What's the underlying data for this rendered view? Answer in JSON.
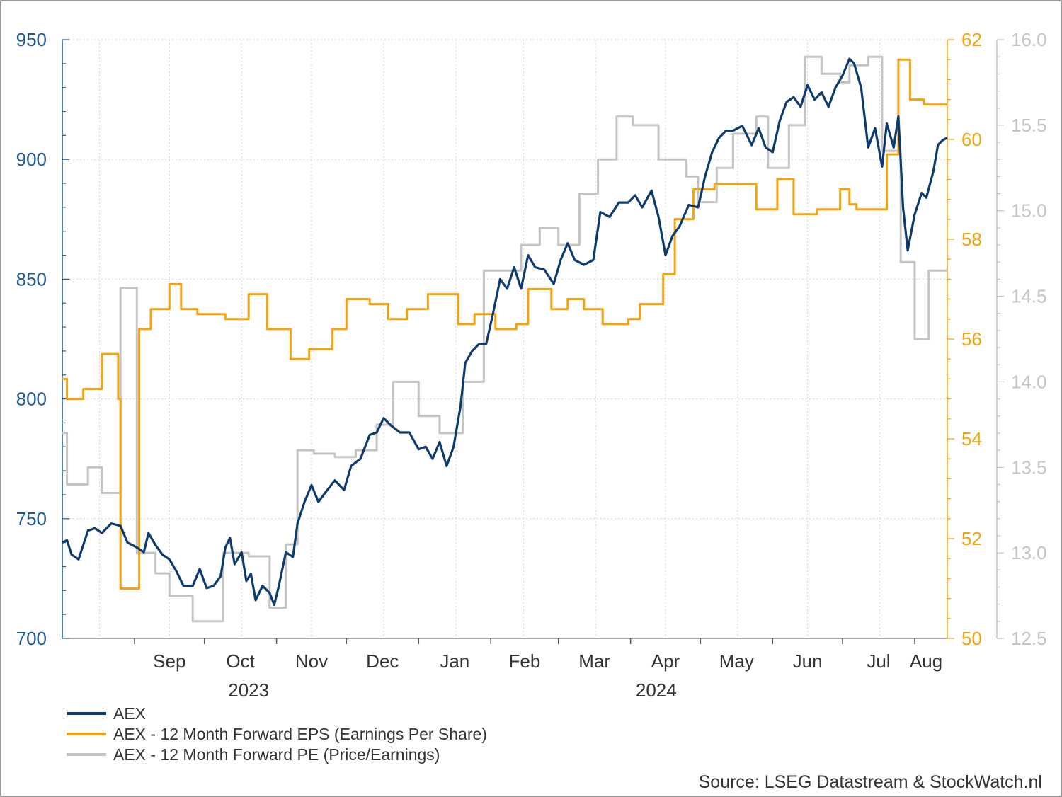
{
  "source_text": "Source: LSEG Datastream & StockWatch.nl",
  "legend": [
    {
      "label": "AEX",
      "color": "#0d3b6e"
    },
    {
      "label": "AEX - 12 Month Forward EPS (Earnings Per Share)",
      "color": "#f5a30a"
    },
    {
      "label": "AEX - 12 Month Forward PE (Price/Earnings)",
      "color": "#c4c4c4"
    }
  ],
  "chart_data": {
    "type": "line",
    "title": "",
    "grid": true,
    "x_start": "2023-08-01",
    "x_end": "2024-08-15",
    "month_ticks": [
      {
        "label": "Sep",
        "date": "2023-09-01"
      },
      {
        "label": "Oct",
        "date": "2023-10-01"
      },
      {
        "label": "Nov",
        "date": "2023-11-01"
      },
      {
        "label": "Dec",
        "date": "2023-12-01"
      },
      {
        "label": "Jan",
        "date": "2024-01-01"
      },
      {
        "label": "Feb",
        "date": "2024-02-01"
      },
      {
        "label": "Mar",
        "date": "2024-03-01"
      },
      {
        "label": "Apr",
        "date": "2024-04-01"
      },
      {
        "label": "May",
        "date": "2024-05-01"
      },
      {
        "label": "Jun",
        "date": "2024-06-01"
      },
      {
        "label": "Jul",
        "date": "2024-07-01"
      },
      {
        "label": "Aug",
        "date": "2024-08-01"
      }
    ],
    "year_labels": [
      {
        "label": "2023",
        "date": "2023-10-20"
      },
      {
        "label": "2024",
        "date": "2024-04-12"
      }
    ],
    "axes": {
      "left": {
        "min": 700,
        "max": 950,
        "ticks": [
          "700",
          "750",
          "800",
          "850",
          "900",
          "950"
        ],
        "color": "#1f5a94"
      },
      "right1": {
        "min": 50,
        "max": 62,
        "ticks": [
          "50",
          "52",
          "54",
          "56",
          "58",
          "60",
          "62"
        ],
        "color": "#f5a30a"
      },
      "right2": {
        "min": 12.5,
        "max": 16.0,
        "ticks": [
          "12.5",
          "13.0",
          "13.5",
          "14.0",
          "14.5",
          "15.0",
          "15.5",
          "16.0"
        ],
        "color": "#c4c4c4"
      }
    },
    "series": [
      {
        "name": "AEX",
        "axis": "left",
        "color": "#0d3b6e",
        "points": [
          [
            "2023-08-01",
            740
          ],
          [
            "2023-08-03",
            741
          ],
          [
            "2023-08-05",
            735
          ],
          [
            "2023-08-08",
            733
          ],
          [
            "2023-08-12",
            745
          ],
          [
            "2023-08-15",
            746
          ],
          [
            "2023-08-18",
            744
          ],
          [
            "2023-08-22",
            748
          ],
          [
            "2023-08-26",
            747
          ],
          [
            "2023-08-29",
            740
          ],
          [
            "2023-09-02",
            738
          ],
          [
            "2023-09-05",
            736
          ],
          [
            "2023-09-07",
            744
          ],
          [
            "2023-09-10",
            739
          ],
          [
            "2023-09-13",
            735
          ],
          [
            "2023-09-16",
            733
          ],
          [
            "2023-09-19",
            728
          ],
          [
            "2023-09-22",
            722
          ],
          [
            "2023-09-26",
            722
          ],
          [
            "2023-09-29",
            729
          ],
          [
            "2023-10-02",
            721
          ],
          [
            "2023-10-05",
            722
          ],
          [
            "2023-10-08",
            726
          ],
          [
            "2023-10-10",
            738
          ],
          [
            "2023-10-12",
            742
          ],
          [
            "2023-10-14",
            731
          ],
          [
            "2023-10-17",
            736
          ],
          [
            "2023-10-19",
            724
          ],
          [
            "2023-10-21",
            727
          ],
          [
            "2023-10-23",
            716
          ],
          [
            "2023-10-26",
            722
          ],
          [
            "2023-10-29",
            719
          ],
          [
            "2023-10-31",
            714
          ],
          [
            "2023-11-02",
            722
          ],
          [
            "2023-11-05",
            736
          ],
          [
            "2023-11-08",
            734
          ],
          [
            "2023-11-10",
            748
          ],
          [
            "2023-11-13",
            757
          ],
          [
            "2023-11-16",
            764
          ],
          [
            "2023-11-19",
            757
          ],
          [
            "2023-11-22",
            761
          ],
          [
            "2023-11-26",
            766
          ],
          [
            "2023-11-30",
            762
          ],
          [
            "2023-12-03",
            772
          ],
          [
            "2023-12-07",
            775
          ],
          [
            "2023-12-11",
            785
          ],
          [
            "2023-12-14",
            786
          ],
          [
            "2023-12-17",
            792
          ],
          [
            "2023-12-20",
            789
          ],
          [
            "2023-12-24",
            786
          ],
          [
            "2023-12-28",
            786
          ],
          [
            "2024-01-01",
            779
          ],
          [
            "2024-01-04",
            780
          ],
          [
            "2024-01-07",
            775
          ],
          [
            "2024-01-10",
            782
          ],
          [
            "2024-01-13",
            772
          ],
          [
            "2024-01-16",
            780
          ],
          [
            "2024-01-19",
            797
          ],
          [
            "2024-01-21",
            815
          ],
          [
            "2024-01-24",
            820
          ],
          [
            "2024-01-27",
            823
          ],
          [
            "2024-01-30",
            823
          ],
          [
            "2024-02-02",
            836
          ],
          [
            "2024-02-05",
            850
          ],
          [
            "2024-02-08",
            846
          ],
          [
            "2024-02-11",
            855
          ],
          [
            "2024-02-14",
            846
          ],
          [
            "2024-02-17",
            860
          ],
          [
            "2024-02-20",
            855
          ],
          [
            "2024-02-24",
            854
          ],
          [
            "2024-02-28",
            848
          ],
          [
            "2024-03-02",
            858
          ],
          [
            "2024-03-05",
            865
          ],
          [
            "2024-03-08",
            858
          ],
          [
            "2024-03-12",
            856
          ],
          [
            "2024-03-16",
            858
          ],
          [
            "2024-03-19",
            878
          ],
          [
            "2024-03-23",
            876
          ],
          [
            "2024-03-27",
            882
          ],
          [
            "2024-03-31",
            882
          ],
          [
            "2024-04-03",
            885
          ],
          [
            "2024-04-06",
            880
          ],
          [
            "2024-04-10",
            887
          ],
          [
            "2024-04-13",
            876
          ],
          [
            "2024-04-16",
            860
          ],
          [
            "2024-04-19",
            868
          ],
          [
            "2024-04-22",
            872
          ],
          [
            "2024-04-26",
            881
          ],
          [
            "2024-04-30",
            880
          ],
          [
            "2024-05-03",
            893
          ],
          [
            "2024-05-06",
            903
          ],
          [
            "2024-05-09",
            909
          ],
          [
            "2024-05-12",
            912
          ],
          [
            "2024-05-15",
            912
          ],
          [
            "2024-05-19",
            914
          ],
          [
            "2024-05-23",
            906
          ],
          [
            "2024-05-26",
            913
          ],
          [
            "2024-05-29",
            905
          ],
          [
            "2024-06-01",
            903
          ],
          [
            "2024-06-04",
            916
          ],
          [
            "2024-06-07",
            924
          ],
          [
            "2024-06-10",
            926
          ],
          [
            "2024-06-13",
            922
          ],
          [
            "2024-06-16",
            931
          ],
          [
            "2024-06-19",
            925
          ],
          [
            "2024-06-22",
            928
          ],
          [
            "2024-06-25",
            922
          ],
          [
            "2024-06-28",
            930
          ],
          [
            "2024-07-01",
            935
          ],
          [
            "2024-07-04",
            942
          ],
          [
            "2024-07-06",
            940
          ],
          [
            "2024-07-09",
            930
          ],
          [
            "2024-07-12",
            905
          ],
          [
            "2024-07-15",
            913
          ],
          [
            "2024-07-18",
            897
          ],
          [
            "2024-07-20",
            915
          ],
          [
            "2024-07-23",
            905
          ],
          [
            "2024-07-25",
            918
          ],
          [
            "2024-07-27",
            880
          ],
          [
            "2024-07-29",
            862
          ],
          [
            "2024-08-01",
            877
          ],
          [
            "2024-08-04",
            886
          ],
          [
            "2024-08-06",
            884
          ],
          [
            "2024-08-09",
            895
          ],
          [
            "2024-08-11",
            906
          ],
          [
            "2024-08-13",
            908
          ],
          [
            "2024-08-15",
            909
          ]
        ]
      },
      {
        "name": "AEX - 12 Month Forward EPS (Earnings Per Share)",
        "axis": "right1",
        "color": "#f5a30a",
        "points": [
          [
            "2023-08-01",
            55.2
          ],
          [
            "2023-08-03",
            54.8
          ],
          [
            "2023-08-10",
            55.0
          ],
          [
            "2023-08-18",
            55.7
          ],
          [
            "2023-08-25",
            54.8
          ],
          [
            "2023-08-26",
            51.0
          ],
          [
            "2023-09-02",
            51.0
          ],
          [
            "2023-09-03",
            56.2
          ],
          [
            "2023-09-08",
            56.6
          ],
          [
            "2023-09-16",
            57.1
          ],
          [
            "2023-09-21",
            56.6
          ],
          [
            "2023-09-28",
            56.5
          ],
          [
            "2023-10-10",
            56.4
          ],
          [
            "2023-10-20",
            56.9
          ],
          [
            "2023-10-28",
            56.2
          ],
          [
            "2023-11-07",
            55.6
          ],
          [
            "2023-11-15",
            55.8
          ],
          [
            "2023-11-25",
            56.2
          ],
          [
            "2023-12-01",
            56.8
          ],
          [
            "2023-12-11",
            56.7
          ],
          [
            "2023-12-19",
            56.4
          ],
          [
            "2023-12-27",
            56.6
          ],
          [
            "2024-01-05",
            56.9
          ],
          [
            "2024-01-18",
            56.3
          ],
          [
            "2024-01-25",
            56.5
          ],
          [
            "2024-02-03",
            56.2
          ],
          [
            "2024-02-12",
            56.3
          ],
          [
            "2024-02-17",
            57.0
          ],
          [
            "2024-02-27",
            56.6
          ],
          [
            "2024-03-05",
            56.8
          ],
          [
            "2024-03-12",
            56.6
          ],
          [
            "2024-03-20",
            56.3
          ],
          [
            "2024-03-31",
            56.4
          ],
          [
            "2024-04-05",
            56.7
          ],
          [
            "2024-04-15",
            57.3
          ],
          [
            "2024-04-20",
            58.4
          ],
          [
            "2024-04-28",
            59.0
          ],
          [
            "2024-05-07",
            59.1
          ],
          [
            "2024-05-15",
            59.1
          ],
          [
            "2024-05-25",
            58.6
          ],
          [
            "2024-06-03",
            59.2
          ],
          [
            "2024-06-10",
            58.5
          ],
          [
            "2024-06-20",
            58.6
          ],
          [
            "2024-06-30",
            59.0
          ],
          [
            "2024-07-04",
            58.7
          ],
          [
            "2024-07-07",
            58.6
          ],
          [
            "2024-07-20",
            59.7
          ],
          [
            "2024-07-25",
            61.6
          ],
          [
            "2024-07-30",
            60.8
          ],
          [
            "2024-08-05",
            60.7
          ],
          [
            "2024-08-15",
            60.7
          ]
        ]
      },
      {
        "name": "AEX - 12 Month Forward PE (Price/Earnings)",
        "axis": "right2",
        "color": "#c4c4c4",
        "points": [
          [
            "2023-08-01",
            13.7
          ],
          [
            "2023-08-03",
            13.4
          ],
          [
            "2023-08-12",
            13.5
          ],
          [
            "2023-08-18",
            13.35
          ],
          [
            "2023-08-26",
            14.55
          ],
          [
            "2023-09-02",
            13.0
          ],
          [
            "2023-09-10",
            12.88
          ],
          [
            "2023-09-16",
            12.75
          ],
          [
            "2023-09-26",
            12.6
          ],
          [
            "2023-10-09",
            13.0
          ],
          [
            "2023-10-20",
            12.98
          ],
          [
            "2023-10-29",
            12.68
          ],
          [
            "2023-11-05",
            13.05
          ],
          [
            "2023-11-10",
            13.6
          ],
          [
            "2023-11-17",
            13.58
          ],
          [
            "2023-11-26",
            13.56
          ],
          [
            "2023-12-05",
            13.6
          ],
          [
            "2023-12-14",
            13.75
          ],
          [
            "2023-12-21",
            14.0
          ],
          [
            "2024-01-01",
            13.8
          ],
          [
            "2024-01-10",
            13.7
          ],
          [
            "2024-01-20",
            14.0
          ],
          [
            "2024-01-29",
            14.65
          ],
          [
            "2024-02-05",
            14.65
          ],
          [
            "2024-02-14",
            14.8
          ],
          [
            "2024-02-22",
            14.9
          ],
          [
            "2024-03-01",
            14.8
          ],
          [
            "2024-03-10",
            15.1
          ],
          [
            "2024-03-18",
            15.3
          ],
          [
            "2024-03-26",
            15.55
          ],
          [
            "2024-04-02",
            15.5
          ],
          [
            "2024-04-13",
            15.3
          ],
          [
            "2024-04-25",
            15.2
          ],
          [
            "2024-04-30",
            15.05
          ],
          [
            "2024-05-08",
            15.25
          ],
          [
            "2024-05-15",
            15.45
          ],
          [
            "2024-05-25",
            15.55
          ],
          [
            "2024-05-30",
            15.25
          ],
          [
            "2024-06-08",
            15.5
          ],
          [
            "2024-06-15",
            15.9
          ],
          [
            "2024-06-22",
            15.8
          ],
          [
            "2024-06-30",
            15.75
          ],
          [
            "2024-07-04",
            15.85
          ],
          [
            "2024-07-12",
            15.9
          ],
          [
            "2024-07-18",
            15.35
          ],
          [
            "2024-07-26",
            14.7
          ],
          [
            "2024-08-01",
            14.25
          ],
          [
            "2024-08-07",
            14.65
          ],
          [
            "2024-08-15",
            14.65
          ]
        ]
      }
    ]
  }
}
